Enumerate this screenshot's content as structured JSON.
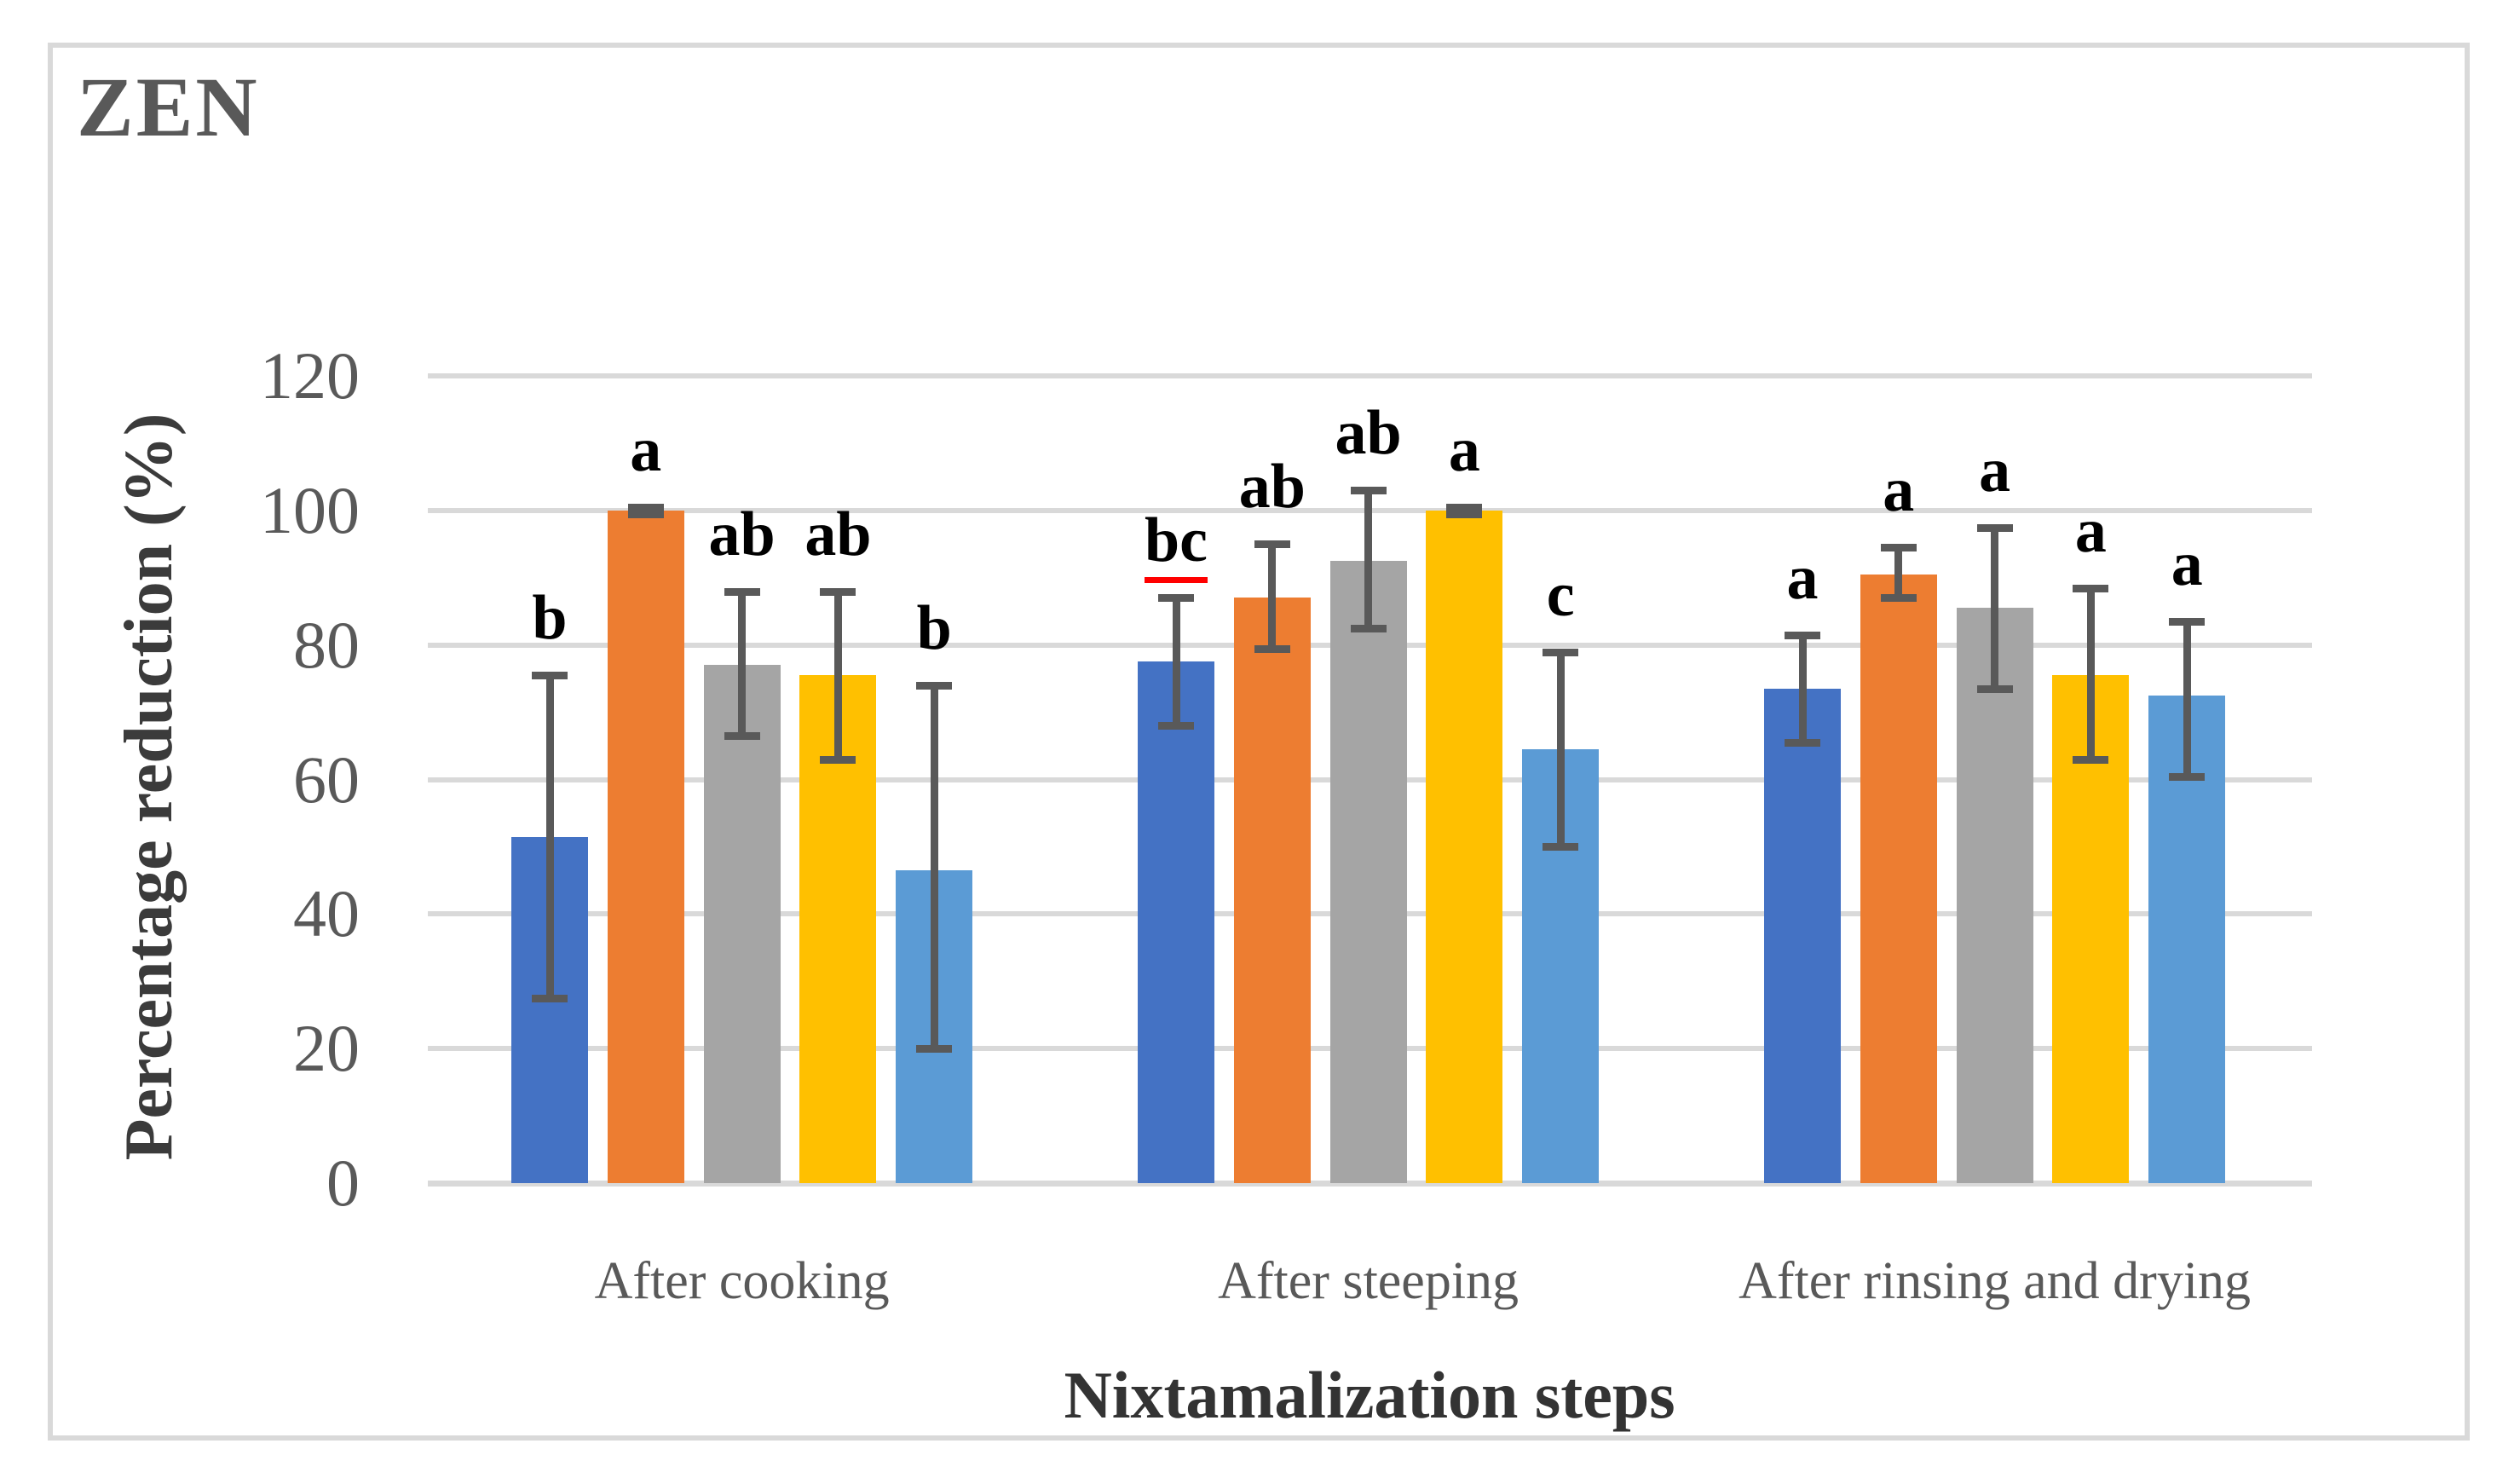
{
  "figure": {
    "title": "ZEN",
    "y_axis_title": "Percentage reduction (%)",
    "x_axis_title": "Nixtamalization steps"
  },
  "chart_data": {
    "type": "bar",
    "title": "ZEN",
    "xlabel": "Nixtamalization steps",
    "ylabel": "Percentage reduction (%)",
    "ylim": [
      0,
      120
    ],
    "yticks": [
      0,
      20,
      40,
      60,
      80,
      100,
      120
    ],
    "grid": true,
    "legend": "none",
    "categories": [
      "After cooking",
      "After steeping",
      "After rinsing and drying"
    ],
    "series": [
      {
        "name": "series-1-dark-blue",
        "color": "#4472C4",
        "values": [
          51.5,
          77.5,
          73.5
        ],
        "error_low": [
          27.5,
          68,
          65.5
        ],
        "error_high": [
          75.5,
          87,
          81.5
        ],
        "letters": [
          "b",
          "bc",
          "a"
        ],
        "letter_underline": [
          false,
          true,
          false
        ]
      },
      {
        "name": "series-2-orange",
        "color": "#ED7D31",
        "values": [
          100,
          87,
          90.5
        ],
        "error_low": [
          99.5,
          79.5,
          87
        ],
        "error_high": [
          100.5,
          95,
          94.5
        ],
        "letters": [
          "a",
          "ab",
          "a"
        ],
        "letter_underline": [
          false,
          false,
          false
        ]
      },
      {
        "name": "series-3-gray",
        "color": "#A5A5A5",
        "values": [
          77,
          92.5,
          85.5
        ],
        "error_low": [
          66.5,
          82.5,
          73.5
        ],
        "error_high": [
          88,
          103,
          97.5
        ],
        "letters": [
          "ab",
          "ab",
          "a"
        ],
        "letter_underline": [
          false,
          false,
          false
        ]
      },
      {
        "name": "series-4-yellow",
        "color": "#FFC000",
        "values": [
          75.5,
          100,
          75.5
        ],
        "error_low": [
          63,
          99.5,
          63
        ],
        "error_high": [
          88,
          100.5,
          88.5
        ],
        "letters": [
          "ab",
          "a",
          "a"
        ],
        "letter_underline": [
          false,
          false,
          false
        ]
      },
      {
        "name": "series-5-light-blue",
        "color": "#5B9BD5",
        "values": [
          46.5,
          64.5,
          72.5
        ],
        "error_low": [
          20,
          50,
          60.5
        ],
        "error_high": [
          74,
          79,
          83.5
        ],
        "letters": [
          "b",
          "c",
          "a"
        ],
        "letter_underline": [
          false,
          false,
          false
        ]
      }
    ],
    "colors": {
      "gridline": "#d9d9d9",
      "error_bar": "#595959",
      "tick_text": "#595959",
      "category_text": "#595959",
      "title_text": "#595959",
      "axis_title_text": "#3b3b3b",
      "letter_text": "#000000",
      "letter_underline": "#ff0000"
    }
  }
}
